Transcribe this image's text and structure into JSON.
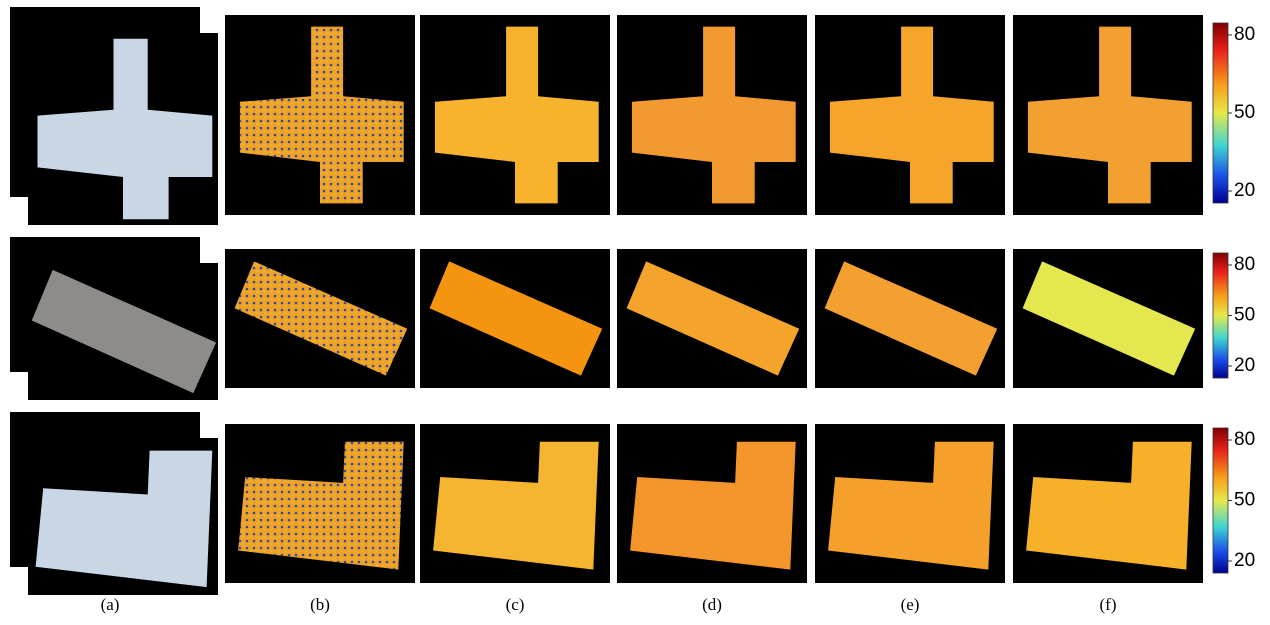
{
  "columns": [
    "(a)",
    "(b)",
    "(c)",
    "(d)",
    "(e)",
    "(f)"
  ],
  "colorbars": [
    {
      "ticks": [
        "80",
        "50",
        "20"
      ]
    },
    {
      "ticks": [
        "80",
        "50",
        "20"
      ]
    },
    {
      "ticks": [
        "80",
        "50",
        "20"
      ]
    }
  ]
}
